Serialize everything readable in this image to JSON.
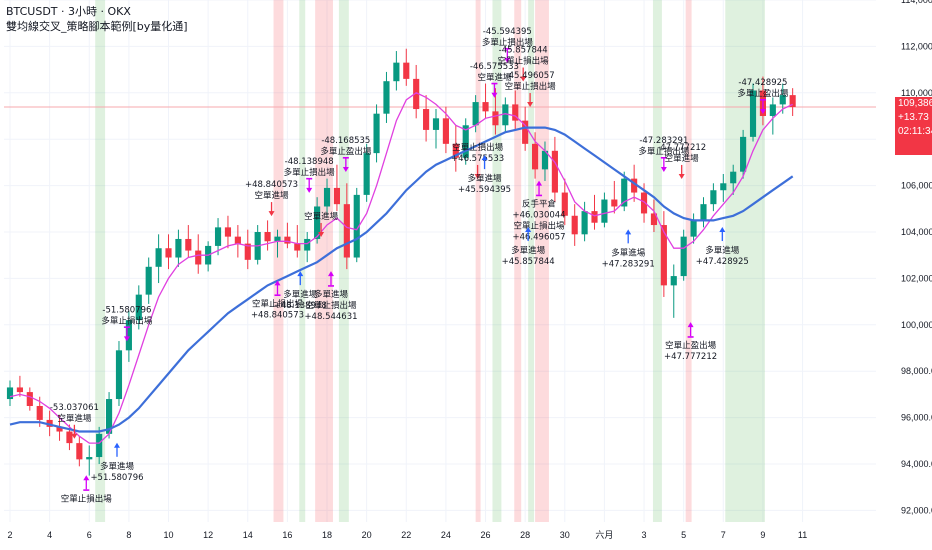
{
  "header": {
    "symbol_line": "BTCUSDT · 3小時 · OKX",
    "strategy_line": "雙均線交叉_策略腳本範例[by量化通]"
  },
  "price_box": {
    "price": "109,386.5",
    "change": "+13.73",
    "countdown": "02:11:34"
  },
  "colors": {
    "up": "#089981",
    "down": "#f23645",
    "fast_ma": "#e040e0",
    "slow_ma": "#3d6fd9",
    "green_band": "rgba(76,175,80,0.18)",
    "red_band": "rgba(242,54,69,0.18)",
    "buy_arrow": "#2962ff",
    "sell_arrow": "#f23645",
    "exit_arrow": "#d500f9"
  },
  "chart_data": {
    "type": "candlestick",
    "title": "",
    "ylim": [
      91500,
      114000
    ],
    "xlim": [
      0,
      86
    ],
    "y_ticks": [
      {
        "v": 92000,
        "label": "92,000.0"
      },
      {
        "v": 94000,
        "label": "94,000.0"
      },
      {
        "v": 96000,
        "label": "96,000.0"
      },
      {
        "v": 98000,
        "label": "98,000.0"
      },
      {
        "v": 100000,
        "label": "100,000.0"
      },
      {
        "v": 102000,
        "label": "102,000.0"
      },
      {
        "v": 104000,
        "label": "104,000.0"
      },
      {
        "v": 106000,
        "label": "106,000.0"
      },
      {
        "v": 108000,
        "label": "108,000.0"
      },
      {
        "v": 110000,
        "label": "110,000.0"
      },
      {
        "v": 112000,
        "label": "112,000.0"
      },
      {
        "v": 114000,
        "label": "114,000.0"
      }
    ],
    "x_ticks": [
      {
        "x": 0,
        "label": "2"
      },
      {
        "x": 4,
        "label": "4"
      },
      {
        "x": 8,
        "label": "6"
      },
      {
        "x": 12,
        "label": "8"
      },
      {
        "x": 16,
        "label": "10"
      },
      {
        "x": 20,
        "label": "12"
      },
      {
        "x": 24,
        "label": "14"
      },
      {
        "x": 28,
        "label": "16"
      },
      {
        "x": 32,
        "label": "18"
      },
      {
        "x": 36,
        "label": "20"
      },
      {
        "x": 40,
        "label": "22"
      },
      {
        "x": 44,
        "label": "24"
      },
      {
        "x": 48,
        "label": "26"
      },
      {
        "x": 52,
        "label": "28"
      },
      {
        "x": 56,
        "label": "30"
      },
      {
        "x": 60,
        "label": "六月"
      },
      {
        "x": 64,
        "label": "3"
      },
      {
        "x": 68,
        "label": "5"
      },
      {
        "x": 72,
        "label": "7"
      },
      {
        "x": 76,
        "label": "9"
      },
      {
        "x": 80,
        "label": "11"
      }
    ],
    "candles": [
      [
        96800,
        97600,
        96500,
        97300
      ],
      [
        97300,
        97800,
        96900,
        97100
      ],
      [
        97100,
        97300,
        96300,
        96500
      ],
      [
        96500,
        96900,
        95600,
        95900
      ],
      [
        95900,
        96300,
        95200,
        95600
      ],
      [
        95600,
        96100,
        95000,
        95400
      ],
      [
        95400,
        95700,
        94600,
        94900
      ],
      [
        94900,
        95200,
        93900,
        94200
      ],
      [
        94200,
        94800,
        93500,
        94300
      ],
      [
        94300,
        95600,
        94000,
        95300
      ],
      [
        95300,
        97100,
        95100,
        96800
      ],
      [
        96800,
        99300,
        96500,
        98900
      ],
      [
        98900,
        100600,
        98400,
        100200
      ],
      [
        100200,
        101700,
        99800,
        101300
      ],
      [
        101300,
        102900,
        100900,
        102500
      ],
      [
        102500,
        103900,
        101800,
        103300
      ],
      [
        103300,
        103900,
        102400,
        102900
      ],
      [
        102900,
        104100,
        102500,
        103700
      ],
      [
        103700,
        104300,
        102900,
        103200
      ],
      [
        103200,
        103900,
        102200,
        102600
      ],
      [
        102600,
        103600,
        102300,
        103400
      ],
      [
        103400,
        104600,
        103000,
        104200
      ],
      [
        104200,
        104700,
        103300,
        103800
      ],
      [
        103800,
        104300,
        102900,
        103500
      ],
      [
        103500,
        104100,
        102400,
        102800
      ],
      [
        102800,
        104300,
        102600,
        104000
      ],
      [
        104000,
        104500,
        103200,
        103600
      ],
      [
        103600,
        104100,
        102900,
        103800
      ],
      [
        103800,
        104400,
        103300,
        103500
      ],
      [
        103500,
        104300,
        102900,
        103200
      ],
      [
        103200,
        104000,
        102700,
        103700
      ],
      [
        103700,
        105500,
        103500,
        105100
      ],
      [
        105100,
        106300,
        104700,
        105900
      ],
      [
        105900,
        106900,
        104900,
        105200
      ],
      [
        105200,
        106100,
        102400,
        102900
      ],
      [
        102900,
        105900,
        102700,
        105600
      ],
      [
        105600,
        107800,
        105300,
        107400
      ],
      [
        107400,
        109500,
        107000,
        109100
      ],
      [
        109100,
        110900,
        108700,
        110500
      ],
      [
        110500,
        111800,
        110100,
        111300
      ],
      [
        111300,
        111900,
        110300,
        110600
      ],
      [
        110600,
        111200,
        108900,
        109300
      ],
      [
        109300,
        109900,
        107900,
        108400
      ],
      [
        108400,
        109300,
        107600,
        108900
      ],
      [
        108900,
        109400,
        107400,
        107800
      ],
      [
        107800,
        108600,
        106600,
        107200
      ],
      [
        107200,
        108900,
        106900,
        108600
      ],
      [
        108600,
        109900,
        108300,
        109600
      ],
      [
        109600,
        110400,
        108900,
        109200
      ],
      [
        109200,
        110200,
        108200,
        108600
      ],
      [
        108600,
        109800,
        108300,
        109500
      ],
      [
        109500,
        110100,
        108400,
        108800
      ],
      [
        108800,
        109400,
        107500,
        107800
      ],
      [
        107800,
        108300,
        106300,
        106700
      ],
      [
        106700,
        107900,
        106200,
        107500
      ],
      [
        107500,
        108100,
        105300,
        105700
      ],
      [
        105700,
        106300,
        104300,
        104700
      ],
      [
        104700,
        105200,
        103400,
        103900
      ],
      [
        103900,
        105300,
        103600,
        104900
      ],
      [
        104900,
        105600,
        104100,
        104400
      ],
      [
        104400,
        105700,
        104200,
        105400
      ],
      [
        105400,
        106200,
        104800,
        105100
      ],
      [
        105100,
        106600,
        104900,
        106300
      ],
      [
        106300,
        106900,
        105300,
        105700
      ],
      [
        105700,
        106100,
        104400,
        104800
      ],
      [
        104800,
        105400,
        104000,
        104300
      ],
      [
        104300,
        104900,
        101200,
        101700
      ],
      [
        101700,
        102600,
        100300,
        102100
      ],
      [
        102100,
        104100,
        101900,
        103800
      ],
      [
        103800,
        104800,
        103500,
        104500
      ],
      [
        104500,
        105500,
        104200,
        105200
      ],
      [
        105200,
        106100,
        104900,
        105800
      ],
      [
        105800,
        106500,
        105300,
        106100
      ],
      [
        106100,
        106900,
        105600,
        106600
      ],
      [
        106600,
        108400,
        106300,
        108100
      ],
      [
        108100,
        110400,
        107900,
        110100
      ],
      [
        110100,
        110700,
        108600,
        109000
      ],
      [
        109000,
        109800,
        108200,
        109500
      ],
      [
        109500,
        110400,
        109100,
        109900
      ],
      [
        109900,
        110200,
        109000,
        109386.5
      ]
    ],
    "series": [
      {
        "name": "",
        "color_key": "fast_ma",
        "values": [
          96900,
          97000,
          96900,
          96700,
          96400,
          96000,
          95600,
          95200,
          94900,
          94900,
          95300,
          96200,
          97400,
          98700,
          100000,
          101200,
          102000,
          102600,
          102900,
          103000,
          103000,
          103200,
          103400,
          103500,
          103400,
          103400,
          103500,
          103600,
          103600,
          103500,
          103500,
          103800,
          104300,
          104600,
          104200,
          104100,
          104800,
          106000,
          107400,
          108800,
          109700,
          110000,
          109800,
          109500,
          109100,
          108600,
          108400,
          108600,
          108900,
          109000,
          109100,
          109000,
          108600,
          107900,
          107500,
          107000,
          106200,
          105300,
          104900,
          104700,
          104800,
          104900,
          105300,
          105500,
          105300,
          104900,
          104000,
          103300,
          103300,
          103600,
          104100,
          104700,
          105200,
          105700,
          106400,
          107500,
          108400,
          108900,
          109300,
          109500
        ]
      },
      {
        "name": "",
        "color_key": "slow_ma",
        "values": [
          95700,
          95800,
          95800,
          95800,
          95700,
          95600,
          95500,
          95400,
          95400,
          95400,
          95500,
          95700,
          96000,
          96400,
          96900,
          97400,
          97900,
          98400,
          98900,
          99300,
          99700,
          100100,
          100500,
          100800,
          101100,
          101400,
          101700,
          101900,
          102100,
          102300,
          102500,
          102700,
          103000,
          103300,
          103500,
          103700,
          104000,
          104400,
          104800,
          105300,
          105800,
          106200,
          106600,
          106900,
          107100,
          107300,
          107500,
          107700,
          107900,
          108100,
          108300,
          108400,
          108500,
          108500,
          108500,
          108400,
          108200,
          107900,
          107600,
          107300,
          107000,
          106700,
          106400,
          106100,
          105800,
          105500,
          105100,
          104800,
          104600,
          104500,
          104500,
          104500,
          104600,
          104700,
          104900,
          105200,
          105500,
          105800,
          106100,
          106400
        ]
      }
    ],
    "bands": [
      {
        "from": 8.6,
        "to": 9.6,
        "color_key": "green_band"
      },
      {
        "from": 26.6,
        "to": 27.6,
        "color_key": "red_band"
      },
      {
        "from": 29.2,
        "to": 29.8,
        "color_key": "green_band"
      },
      {
        "from": 30.8,
        "to": 32.6,
        "color_key": "red_band"
      },
      {
        "from": 33.2,
        "to": 34.2,
        "color_key": "green_band"
      },
      {
        "from": 47.0,
        "to": 47.5,
        "color_key": "red_band"
      },
      {
        "from": 48.7,
        "to": 49.6,
        "color_key": "green_band"
      },
      {
        "from": 50.9,
        "to": 51.6,
        "color_key": "red_band"
      },
      {
        "from": 52.3,
        "to": 52.9,
        "color_key": "green_band"
      },
      {
        "from": 53.0,
        "to": 54.4,
        "color_key": "red_band"
      },
      {
        "from": 64.9,
        "to": 65.8,
        "color_key": "green_band"
      },
      {
        "from": 68.2,
        "to": 68.8,
        "color_key": "red_band"
      },
      {
        "from": 72.2,
        "to": 76.2,
        "color_key": "green_band"
      }
    ],
    "signals": [
      {
        "x": 6.5,
        "y": 95000,
        "kind": "sell",
        "lines": [
          "-53.037061",
          "空單進場"
        ]
      },
      {
        "x": 7.7,
        "y": 93600,
        "kind": "exit_below",
        "lines": [
          "空單止損出場"
        ]
      },
      {
        "x": 10.8,
        "y": 95000,
        "kind": "buy",
        "lines": [
          "多單進場",
          "+51.580796"
        ]
      },
      {
        "x": 11.8,
        "y": 99200,
        "kind": "exit_above",
        "lines": [
          "-51.580796",
          "多單止損出場"
        ]
      },
      {
        "x": 26.4,
        "y": 104600,
        "kind": "sell",
        "lines": [
          "+48.840573",
          "空單進場"
        ]
      },
      {
        "x": 27.0,
        "y": 102000,
        "kind": "exit_below",
        "lines": [
          "空單止損出場",
          "+48.840573"
        ]
      },
      {
        "x": 29.3,
        "y": 102400,
        "kind": "buy",
        "lines": [
          "多單進場",
          "+48.138948"
        ]
      },
      {
        "x": 30.2,
        "y": 105600,
        "kind": "exit_above",
        "lines": [
          "-48.138948",
          "多單止損出場"
        ]
      },
      {
        "x": 31.4,
        "y": 103700,
        "kind": "sell",
        "lines": [
          "空單進場"
        ]
      },
      {
        "x": 32.4,
        "y": 102400,
        "kind": "exit_below",
        "lines": [
          "多單進場",
          "空單止損出場",
          "+48.544631"
        ]
      },
      {
        "x": 33.9,
        "y": 106500,
        "kind": "exit_above",
        "lines": [
          "-48.168535",
          "多單止盈出場"
        ]
      },
      {
        "x": 47.2,
        "y": 106200,
        "kind": "sell",
        "lines": [
          "空單止損出場",
          "+46.575533"
        ]
      },
      {
        "x": 47.9,
        "y": 107400,
        "kind": "buy",
        "lines": [
          "多單進場",
          "+45.594395"
        ]
      },
      {
        "x": 48.9,
        "y": 109700,
        "kind": "exit_above",
        "lines": [
          "-46.575533",
          "空單進場"
        ]
      },
      {
        "x": 50.2,
        "y": 111200,
        "kind": "exit_above",
        "lines": [
          "-45.594395",
          "多單止損出場"
        ]
      },
      {
        "x": 51.8,
        "y": 110400,
        "kind": "sell",
        "lines": [
          "-45.857844",
          "空單止損出場"
        ]
      },
      {
        "x": 52.5,
        "y": 109300,
        "kind": "sell",
        "lines": [
          "-45.496057",
          "空單止損出場"
        ]
      },
      {
        "x": 53.4,
        "y": 106300,
        "kind": "exit_below",
        "lines": [
          "反手平倉",
          "+46.030044",
          "空單止損出場",
          "+46.496057"
        ]
      },
      {
        "x": 52.3,
        "y": 104300,
        "kind": "buy",
        "lines": [
          "多單進場",
          "+45.857844"
        ]
      },
      {
        "x": 62.4,
        "y": 104200,
        "kind": "buy",
        "lines": [
          "多單進場",
          "+47.283291"
        ]
      },
      {
        "x": 66.0,
        "y": 106500,
        "kind": "exit_above",
        "lines": [
          "-47.283291",
          "多單止損出場"
        ]
      },
      {
        "x": 67.8,
        "y": 106200,
        "kind": "sell",
        "lines": [
          "-47.777212",
          "空單進場"
        ]
      },
      {
        "x": 68.7,
        "y": 100200,
        "kind": "exit_below",
        "lines": [
          "空單止盈出場",
          "+47.777212"
        ]
      },
      {
        "x": 71.9,
        "y": 104300,
        "kind": "buy",
        "lines": [
          "多單進場",
          "+47.428925"
        ]
      },
      {
        "x": 76.0,
        "y": 109000,
        "kind": "exit_above",
        "lines": [
          "-47.428925",
          "多單止盈出場"
        ]
      }
    ],
    "last_price": 109386.5,
    "grid": true,
    "legend": "top-left"
  }
}
